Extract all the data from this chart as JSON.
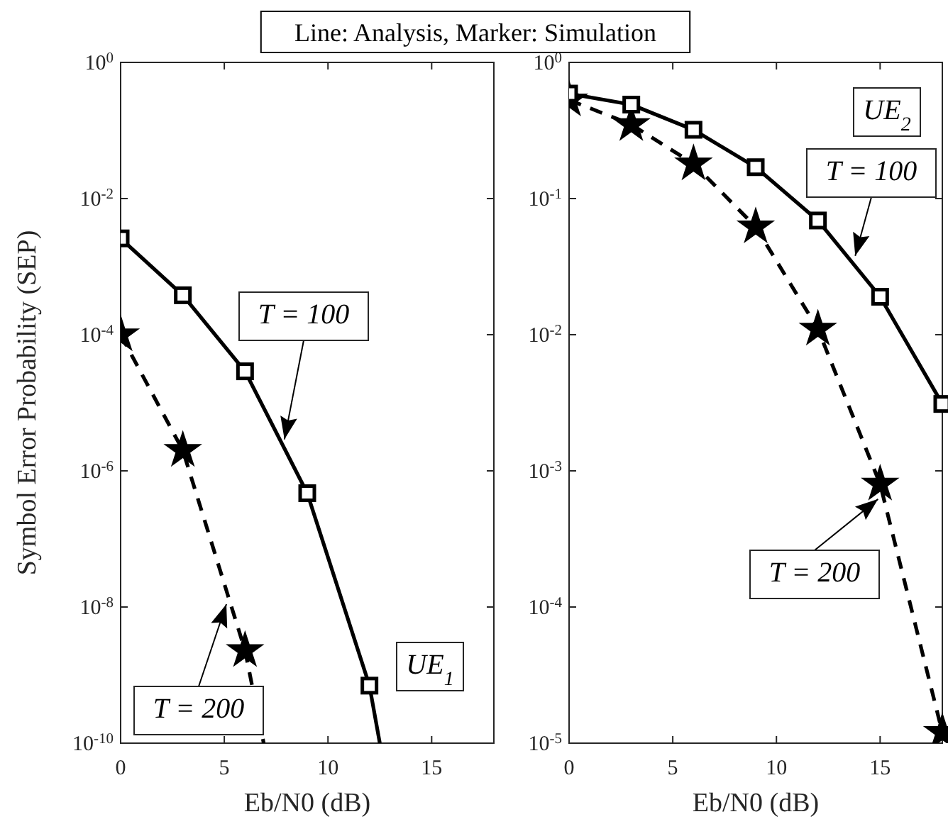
{
  "chart_data": [
    {
      "type": "line",
      "title": "Line: Analysis, Marker: Simulation",
      "xlabel": "Eb/N0 (dB)",
      "ylabel": "Symbol Error Probability (SEP)",
      "log": "y",
      "xlim": [
        0,
        18
      ],
      "xticks": [
        0,
        5,
        10,
        15
      ],
      "ylim": [
        1e-10,
        1
      ],
      "yticks": [
        {
          "value": 1,
          "label": "10$^{0}$"
        },
        {
          "value": 0.01,
          "label": "10$^{-2}$"
        },
        {
          "value": 0.0001,
          "label": "10$^{-4}$"
        },
        {
          "value": 1e-06,
          "label": "10$^{-6}$"
        },
        {
          "value": 1e-08,
          "label": "10$^{-8}$"
        },
        {
          "value": 1e-10,
          "label": "10$^{-10}$"
        }
      ],
      "series": [
        {
          "type": "line",
          "color": "#000000",
          "line_style": "solid",
          "marker": "none",
          "x": [
            0,
            3,
            6,
            9,
            12,
            12.5
          ],
          "values": [
            0.0026,
            0.00038,
            2.9e-05,
            4.7e-07,
            7e-10,
            1e-10
          ]
        },
        {
          "type": "scatter",
          "color": "#000000",
          "marker": "square",
          "x": [
            0,
            3,
            6,
            9,
            12
          ],
          "values": [
            0.0026,
            0.00038,
            2.9e-05,
            4.7e-07,
            7e-10
          ]
        },
        {
          "type": "line",
          "color": "#000000",
          "line_style": "dashed",
          "marker": "none",
          "x": [
            0,
            3,
            6,
            6.9
          ],
          "values": [
            0.0001,
            2e-06,
            2.3e-09,
            1e-10
          ]
        },
        {
          "type": "scatter",
          "color": "#000000",
          "marker": "star",
          "x": [
            0,
            3,
            6
          ],
          "values": [
            0.0001,
            2e-06,
            2.3e-09
          ]
        }
      ],
      "annotations": [
        {
          "text": "T = 100",
          "x": 7.9,
          "y": 2.9e-06
        },
        {
          "text": "T = 200",
          "x": 5.1,
          "y": 1.1e-08
        },
        "UE$_{1}$"
      ]
    },
    {
      "type": "line",
      "xlabel": "Eb/N0 (dB)",
      "log": "y",
      "xlim": [
        0,
        18
      ],
      "xticks": [
        0,
        5,
        10,
        15
      ],
      "ylim": [
        1e-05,
        1
      ],
      "yticks": [
        {
          "value": 1,
          "label": "10$^{0}$"
        },
        {
          "value": 0.1,
          "label": "10$^{-1}$"
        },
        {
          "value": 0.01,
          "label": "10$^{-2}$"
        },
        {
          "value": 0.001,
          "label": "10$^{-3}$"
        },
        {
          "value": 0.0001,
          "label": "10$^{-4}$"
        },
        {
          "value": 1e-05,
          "label": "10$^{-5}$"
        }
      ],
      "series": [
        {
          "type": "line",
          "color": "#000000",
          "line_style": "solid",
          "marker": "none",
          "x": [
            0,
            3,
            6,
            9,
            12,
            15,
            18
          ],
          "values": [
            0.59,
            0.49,
            0.32,
            0.17,
            0.069,
            0.019,
            0.0031
          ]
        },
        {
          "type": "line",
          "color": "#000000",
          "line_style": "dashed",
          "marker": "none",
          "x": [
            0,
            3,
            6,
            9,
            12,
            15,
            18
          ],
          "values": [
            0.53,
            0.35,
            0.18,
            0.062,
            0.011,
            0.0008,
            1.2e-05
          ]
        },
        {
          "type": "scatter",
          "color": "#000000",
          "marker": "star",
          "x": [
            0,
            3,
            6,
            9,
            12,
            15,
            18
          ],
          "values": [
            0.53,
            0.35,
            0.18,
            0.062,
            0.011,
            0.0008,
            1.2e-05
          ]
        },
        {
          "type": "scatter",
          "color": "#000000",
          "marker": "square",
          "x": [
            0,
            3,
            6,
            9,
            12,
            15,
            18
          ],
          "values": [
            0.59,
            0.49,
            0.32,
            0.17,
            0.069,
            0.019,
            0.0031
          ]
        }
      ],
      "annotations": [
        "UE$_{2}$",
        {
          "text": "T = 100",
          "x": 13.8,
          "y": 0.038
        },
        {
          "text": "T = 200",
          "x": 14.9,
          "y": 0.00062
        }
      ]
    }
  ]
}
